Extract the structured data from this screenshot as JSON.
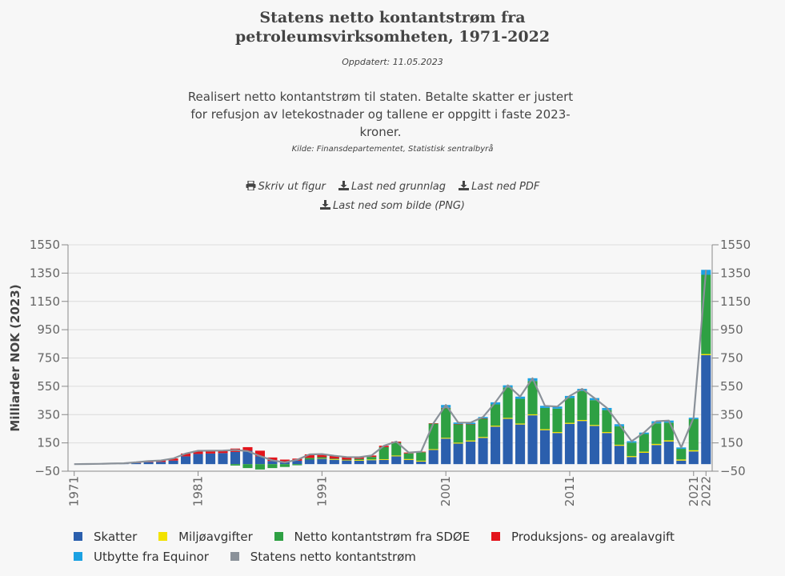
{
  "header": {
    "title_line1": "Statens netto kontantstrøm fra",
    "title_line2": "petroleumsvirksomheten, 1971-2022",
    "updated": "Oppdatert: 11.05.2023",
    "subtitle": "Realisert netto kontantstrøm til staten. Betalte skatter er justert for refusjon av letekostnader og tallene er oppgitt i faste 2023-kroner.",
    "source": "Kilde: Finansdepartementet, Statistisk sentralbyrå"
  },
  "actions": {
    "print": "Skriv ut figur",
    "download_data": "Last ned grunnlag",
    "download_pdf": "Last ned PDF",
    "download_png": "Last ned som bilde (PNG)"
  },
  "colors": {
    "skatter": "#2b5fad",
    "miljo": "#f2e200",
    "sdoe": "#2ea043",
    "produksjon": "#e3141c",
    "equinor": "#1ba1e2",
    "netto": "#8a9199"
  },
  "chart_data": {
    "type": "bar",
    "stacked": true,
    "ylabel": "Milliarder NOK (2023)",
    "ylim": [
      -50,
      1550
    ],
    "yticks": [
      -50,
      150,
      350,
      550,
      750,
      950,
      1150,
      1350,
      1550
    ],
    "ytick_labels": [
      "−50",
      "150",
      "350",
      "550",
      "750",
      "950",
      "1150",
      "1350",
      "1550"
    ],
    "xtick_labels": [
      "1971",
      "1981",
      "1991",
      "2001",
      "2011",
      "2021",
      "2022"
    ],
    "categories": [
      "1971",
      "1972",
      "1973",
      "1974",
      "1975",
      "1976",
      "1977",
      "1978",
      "1979",
      "1980",
      "1981",
      "1982",
      "1983",
      "1984",
      "1985",
      "1986",
      "1987",
      "1988",
      "1989",
      "1990",
      "1991",
      "1992",
      "1993",
      "1994",
      "1995",
      "1996",
      "1997",
      "1998",
      "1999",
      "2000",
      "2001",
      "2002",
      "2003",
      "2004",
      "2005",
      "2006",
      "2007",
      "2008",
      "2009",
      "2010",
      "2011",
      "2012",
      "2013",
      "2014",
      "2015",
      "2016",
      "2017",
      "2018",
      "2019",
      "2020",
      "2021",
      "2022"
    ],
    "series": [
      {
        "name": "Skatter",
        "values": [
          0,
          1,
          2,
          3,
          4,
          8,
          14,
          16,
          25,
          55,
          72,
          75,
          78,
          86,
          94,
          55,
          22,
          12,
          24,
          32,
          38,
          30,
          26,
          24,
          28,
          30,
          55,
          30,
          18,
          100,
          180,
          145,
          160,
          185,
          265,
          320,
          280,
          345,
          240,
          220,
          285,
          305,
          270,
          220,
          130,
          50,
          80,
          135,
          160,
          25,
          90,
          770
        ]
      },
      {
        "name": "Miljøavgifter",
        "values": [
          0,
          0,
          0,
          0,
          0,
          0,
          0,
          0,
          0,
          0,
          0,
          0,
          0,
          0,
          0,
          0,
          0,
          0,
          0,
          0,
          3,
          4,
          4,
          5,
          5,
          5,
          6,
          6,
          6,
          6,
          6,
          7,
          7,
          7,
          7,
          7,
          7,
          7,
          7,
          7,
          7,
          7,
          7,
          7,
          7,
          7,
          8,
          8,
          8,
          8,
          8,
          8
        ]
      },
      {
        "name": "Netto kontantstrøm fra SDØE",
        "values": [
          0,
          0,
          0,
          0,
          0,
          0,
          0,
          0,
          0,
          0,
          0,
          0,
          0,
          -10,
          -28,
          -38,
          -28,
          -20,
          -8,
          12,
          8,
          5,
          2,
          8,
          18,
          85,
          90,
          40,
          60,
          180,
          210,
          130,
          115,
          130,
          150,
          215,
          175,
          235,
          150,
          165,
          175,
          205,
          175,
          155,
          130,
          95,
          125,
          145,
          125,
          75,
          220,
          560
        ]
      },
      {
        "name": "Produksjons- og arealavgift",
        "values": [
          0,
          0,
          0,
          1,
          2,
          5,
          8,
          10,
          15,
          20,
          22,
          20,
          18,
          24,
          26,
          40,
          25,
          20,
          15,
          25,
          22,
          20,
          18,
          12,
          10,
          10,
          8,
          6,
          4,
          3,
          2,
          2,
          1,
          1,
          0,
          0,
          0,
          0,
          0,
          0,
          0,
          0,
          0,
          0,
          0,
          0,
          0,
          0,
          0,
          0,
          0,
          0
        ]
      },
      {
        "name": "Utbytte fra Equinor",
        "values": [
          0,
          0,
          0,
          0,
          0,
          0,
          0,
          0,
          0,
          0,
          0,
          0,
          0,
          0,
          0,
          0,
          0,
          0,
          0,
          0,
          0,
          0,
          0,
          0,
          0,
          0,
          0,
          0,
          0,
          0,
          20,
          10,
          10,
          10,
          15,
          15,
          15,
          20,
          15,
          15,
          15,
          15,
          15,
          15,
          15,
          10,
          10,
          15,
          15,
          10,
          10,
          35
        ]
      }
    ],
    "line": {
      "name": "Statens netto kontantstrøm",
      "values": [
        0,
        1,
        2,
        4,
        6,
        13,
        22,
        26,
        40,
        75,
        94,
        95,
        96,
        100,
        92,
        57,
        27,
        12,
        31,
        69,
        71,
        59,
        50,
        49,
        61,
        130,
        159,
        82,
        88,
        289,
        418,
        294,
        293,
        333,
        437,
        557,
        477,
        607,
        412,
        407,
        482,
        532,
        467,
        397,
        282,
        162,
        223,
        303,
        308,
        118,
        328,
        1373
      ]
    }
  }
}
